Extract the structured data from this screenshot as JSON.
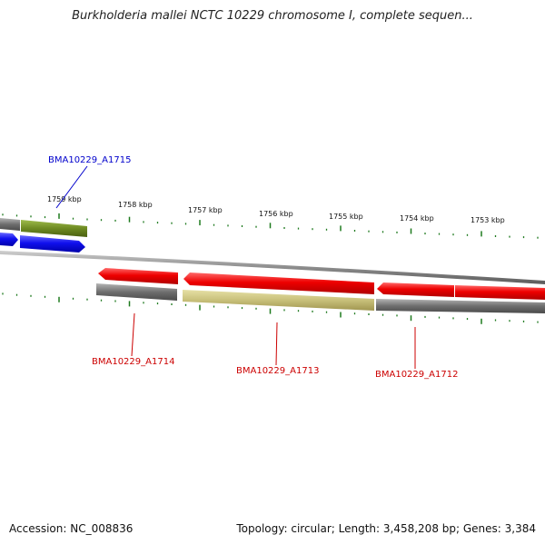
{
  "title": "Burkholderia mallei NCTC 10229 chromosome I, complete sequen...",
  "accession": "Accession: NC_008836",
  "summary": "Topology: circular; Length: 3,458,208 bp; Genes: 3,384",
  "kbp_labels": [
    "1759 kbp",
    "1758 kbp",
    "1757 kbp",
    "1756 kbp",
    "1755 kbp",
    "1754 kbp",
    "1753 kbp"
  ],
  "genes": [
    {
      "label": "BMA10229_A1715",
      "strand": "forward",
      "color": "#0000cc"
    },
    {
      "label": "BMA10229_A1714",
      "strand": "reverse",
      "color": "#cc0000"
    },
    {
      "label": "BMA10229_A1713",
      "strand": "reverse",
      "color": "#cc0000"
    },
    {
      "label": "BMA10229_A1712",
      "strand": "reverse",
      "color": "#cc0000"
    }
  ],
  "colors": {
    "backbone": "#8c8c8c",
    "tick": "#1e7a1e",
    "cds_forward": "#1010ee",
    "cds_reverse": "#ee0000",
    "gene_olive": "#6e8a22",
    "gene_khaki": "#c8c07a",
    "gene_gray": "#707070"
  }
}
